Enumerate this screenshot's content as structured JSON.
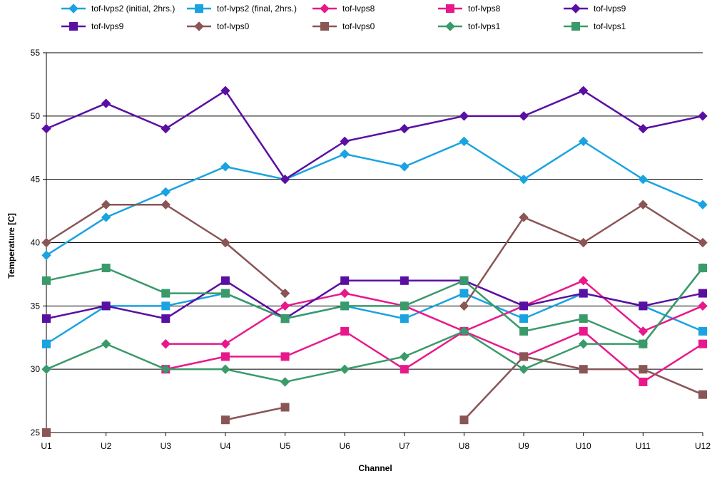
{
  "chart_data": {
    "type": "line",
    "title": "",
    "xlabel": "Channel",
    "ylabel": "Temperature [C]",
    "ylim": [
      25,
      55
    ],
    "yticks": [
      25,
      30,
      35,
      40,
      45,
      50,
      55
    ],
    "grid": true,
    "legend_position": "top",
    "categories": [
      "U1",
      "U2",
      "U3",
      "U4",
      "U5",
      "U6",
      "U7",
      "U8",
      "U9",
      "U10",
      "U11",
      "U12"
    ],
    "series": [
      {
        "name": "tof-lvps2 (initial, 2hrs.)",
        "color": "#1AA3E0",
        "marker": "diamond",
        "values": [
          39,
          42,
          44,
          46,
          45,
          47,
          46,
          48,
          45,
          48,
          45,
          43
        ]
      },
      {
        "name": "tof-lvps2 (final, 2hrs.)",
        "color": "#1AA3E0",
        "marker": "square",
        "values": [
          32,
          35,
          35,
          36,
          34,
          35,
          34,
          36,
          34,
          36,
          35,
          33
        ]
      },
      {
        "name": "tof-lvps8",
        "color": "#E8188C",
        "marker": "diamond",
        "values": [
          null,
          null,
          32,
          32,
          35,
          36,
          35,
          33,
          35,
          37,
          33,
          35
        ]
      },
      {
        "name": "tof-lvps8",
        "color": "#E8188C",
        "marker": "square",
        "values": [
          null,
          null,
          30,
          31,
          31,
          33,
          30,
          33,
          31,
          33,
          29,
          32
        ]
      },
      {
        "name": "tof-lvps9",
        "color": "#5A0FA3",
        "marker": "diamond",
        "values": [
          49,
          51,
          49,
          52,
          45,
          48,
          49,
          50,
          50,
          52,
          49,
          50
        ]
      },
      {
        "name": "tof-lvps9",
        "color": "#5A0FA3",
        "marker": "square",
        "values": [
          34,
          35,
          34,
          37,
          34,
          37,
          37,
          37,
          35,
          36,
          35,
          36
        ]
      },
      {
        "name": "tof-lvps0",
        "color": "#8A5555",
        "marker": "diamond",
        "values": [
          40,
          43,
          43,
          40,
          36,
          null,
          null,
          35,
          42,
          40,
          43,
          40
        ]
      },
      {
        "name": "tof-lvps0",
        "color": "#8A5555",
        "marker": "square",
        "values": [
          25,
          null,
          null,
          26,
          27,
          null,
          null,
          26,
          31,
          30,
          30,
          28
        ]
      },
      {
        "name": "tof-lvps1",
        "color": "#3A9A6A",
        "marker": "diamond",
        "values": [
          30,
          32,
          30,
          30,
          29,
          30,
          31,
          33,
          30,
          32,
          32,
          38
        ]
      },
      {
        "name": "tof-lvps1",
        "color": "#3A9A6A",
        "marker": "square",
        "values": [
          37,
          38,
          36,
          36,
          34,
          35,
          35,
          37,
          33,
          34,
          32,
          38
        ]
      }
    ]
  }
}
